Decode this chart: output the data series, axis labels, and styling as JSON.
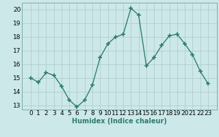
{
  "x": [
    0,
    1,
    2,
    3,
    4,
    5,
    6,
    7,
    8,
    9,
    10,
    11,
    12,
    13,
    14,
    15,
    16,
    17,
    18,
    19,
    20,
    21,
    22,
    23
  ],
  "y": [
    15.0,
    14.7,
    15.4,
    15.2,
    14.4,
    13.4,
    12.9,
    13.4,
    14.5,
    16.5,
    17.5,
    18.0,
    18.2,
    20.1,
    19.6,
    15.9,
    16.5,
    17.4,
    18.1,
    18.2,
    17.5,
    16.7,
    15.5,
    14.6
  ],
  "line_color": "#2e7d6e",
  "marker": "+",
  "marker_size": 4,
  "bg_color": "#cce8e8",
  "grid_color": "#b0cccc",
  "xlabel": "Humidex (Indice chaleur)",
  "ylim": [
    12.7,
    20.5
  ],
  "yticks": [
    13,
    14,
    15,
    16,
    17,
    18,
    19,
    20
  ],
  "xticks": [
    0,
    1,
    2,
    3,
    4,
    5,
    6,
    7,
    8,
    9,
    10,
    11,
    12,
    13,
    14,
    15,
    16,
    17,
    18,
    19,
    20,
    21,
    22,
    23
  ],
  "label_fontsize": 7,
  "tick_fontsize": 6.5,
  "spine_color": "#7aaaaa"
}
